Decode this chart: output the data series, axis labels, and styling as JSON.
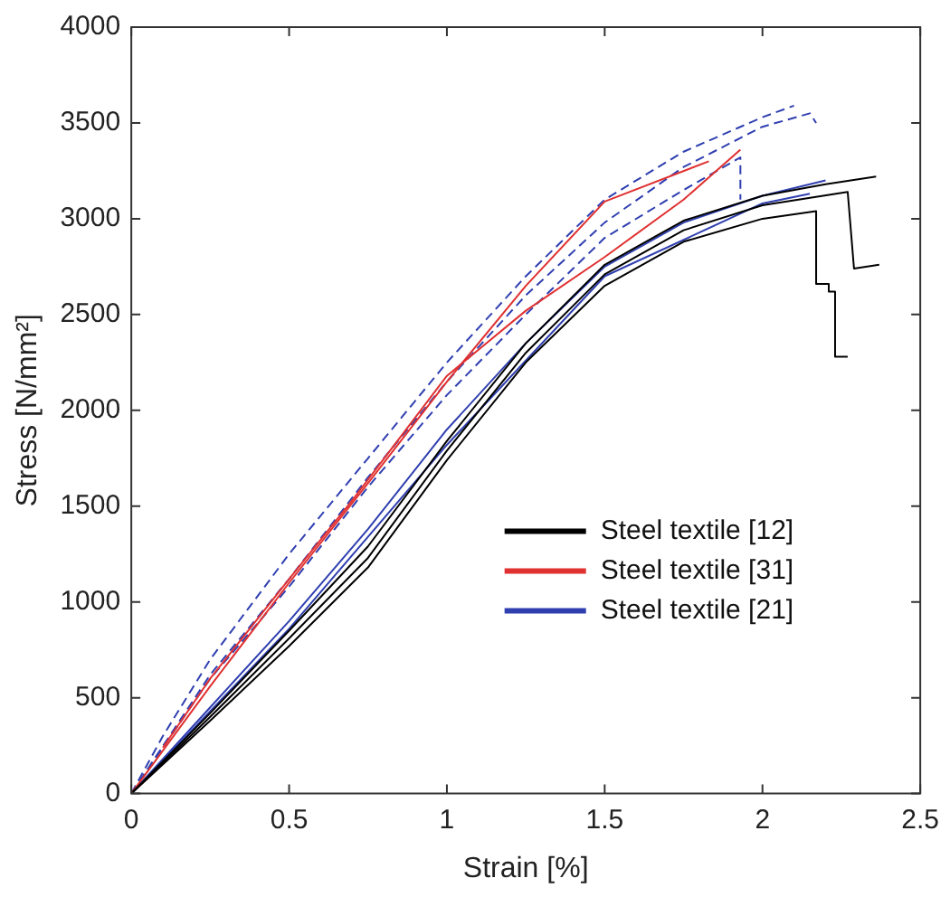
{
  "chart_data": {
    "type": "line",
    "xlabel": "Strain [%]",
    "ylabel": "Stress [N/mm²]",
    "xlim": [
      0,
      2.5
    ],
    "ylim": [
      0,
      4000
    ],
    "xticks": [
      0,
      0.5,
      1,
      1.5,
      2,
      2.5
    ],
    "yticks": [
      0,
      500,
      1000,
      1500,
      2000,
      2500,
      3000,
      3500,
      4000
    ],
    "grid": false,
    "legend": "bottom right",
    "marker": "none",
    "series": [
      {
        "name": "Steel textile [12]",
        "color": "#000000",
        "x": [
          0,
          0.25,
          0.5,
          0.75,
          1.0,
          1.25,
          1.5,
          1.75,
          2.0,
          2.17,
          2.17,
          2.21,
          2.21,
          2.23,
          2.23,
          2.27
        ],
        "values": [
          0,
          380,
          770,
          1180,
          1740,
          2250,
          2650,
          2880,
          3000,
          3040,
          2660,
          2660,
          2620,
          2620,
          2280,
          2280
        ]
      },
      {
        "color": "#000000",
        "x": [
          0,
          0.25,
          0.5,
          0.75,
          1.0,
          1.25,
          1.5,
          1.75,
          2.0,
          2.27,
          2.29,
          2.37
        ],
        "values": [
          0,
          400,
          810,
          1230,
          1790,
          2300,
          2710,
          2940,
          3070,
          3140,
          2740,
          2760
        ]
      },
      {
        "color": "#000000",
        "x": [
          0,
          0.25,
          0.5,
          0.75,
          1.0,
          1.25,
          1.5,
          1.75,
          2.0,
          2.2,
          2.36
        ],
        "values": [
          0,
          420,
          850,
          1290,
          1840,
          2350,
          2760,
          2990,
          3120,
          3180,
          3220
        ]
      },
      {
        "name": "Steel textile [31]",
        "color": "#e03030",
        "x": [
          0.1,
          0.25,
          0.5,
          0.7,
          1.0,
          1.25,
          1.5,
          1.75,
          1.93
        ],
        "values": [
          240,
          600,
          1120,
          1530,
          2180,
          2520,
          2800,
          3100,
          3360
        ]
      },
      {
        "color": "#e03030",
        "x": [
          0,
          0.25,
          0.5,
          0.75,
          1.0,
          1.25,
          1.5,
          1.83
        ],
        "values": [
          0,
          560,
          1100,
          1620,
          2150,
          2650,
          3090,
          3300
        ]
      },
      {
        "name": "Steel textile [21]",
        "color": "#2f3fb0",
        "line_style": "dashed",
        "x": [
          0,
          0.1,
          0.25,
          0.5,
          0.75,
          1.0,
          1.25,
          1.5,
          1.75,
          2.0,
          2.1
        ],
        "values": [
          0,
          300,
          700,
          1250,
          1750,
          2250,
          2700,
          3100,
          3350,
          3530,
          3590
        ]
      },
      {
        "color": "#2f3fb0",
        "line_style": "dashed",
        "x": [
          0,
          0.25,
          0.5,
          0.75,
          1.0,
          1.25,
          1.5,
          1.75,
          2.0,
          2.15,
          2.17
        ],
        "values": [
          0,
          620,
          1120,
          1650,
          2150,
          2600,
          2980,
          3270,
          3480,
          3550,
          3500
        ]
      },
      {
        "color": "#2f3fb0",
        "line_style": "dashed",
        "x": [
          0,
          0.25,
          0.5,
          0.75,
          1.0,
          1.25,
          1.5,
          1.75,
          1.93,
          1.93
        ],
        "values": [
          0,
          600,
          1080,
          1600,
          2080,
          2500,
          2900,
          3150,
          3320,
          3100
        ]
      },
      {
        "color": "#2f3fb0",
        "x": [
          0,
          0.25,
          0.5,
          0.75,
          1.0,
          1.25,
          1.5,
          1.75,
          2.0,
          2.2
        ],
        "values": [
          0,
          450,
          900,
          1380,
          1900,
          2350,
          2750,
          2980,
          3120,
          3200
        ]
      },
      {
        "color": "#2f3fb0",
        "x": [
          0,
          0.5,
          1.0,
          1.5,
          2.0,
          2.15
        ],
        "values": [
          0,
          860,
          1820,
          2700,
          3080,
          3130
        ]
      }
    ]
  }
}
